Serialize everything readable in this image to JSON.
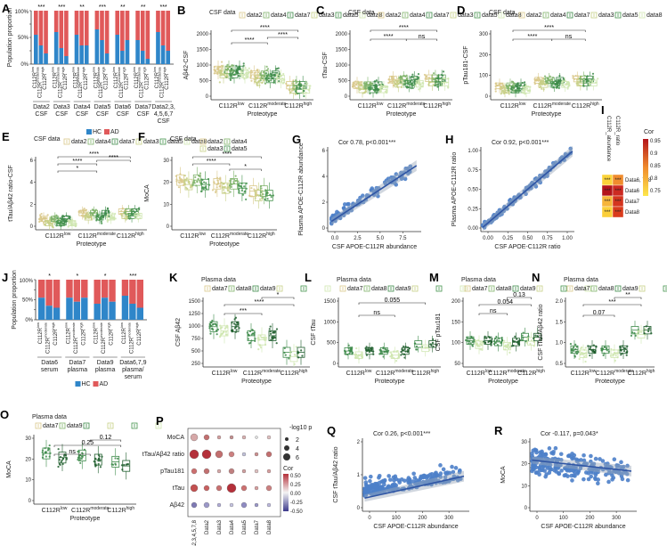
{
  "colors": {
    "hc": "#2f86c9",
    "ad": "#e0595a",
    "data2": "#d9c88a",
    "data3": "#c7cf86",
    "data4": "#7fb36a",
    "data5": "#46944f",
    "data7": "#3d8a4a",
    "data8": "#cfe6b0",
    "data9": "#1f5e2d",
    "scatter": "#4c7fc9",
    "line": "#2f55a4"
  },
  "common": {
    "csf_title": "CSF data",
    "plasma_title": "Plasma data",
    "proteotype": "Proteotype",
    "groups": [
      "C112R<sup>low</sup>",
      "C112R<sup>moderate</sup>",
      "C112R<sup>high</sup>"
    ],
    "legend_csf_all": [
      "data2",
      "data4",
      "data7",
      "data3",
      "data5",
      "data8"
    ],
    "legend_plasma3": [
      "data7",
      "data8",
      "data9"
    ],
    "legend_plasma2": [
      "data7",
      "data9"
    ],
    "hc": "HC",
    "ad": "AD"
  },
  "panels": {
    "A": {
      "label": "A",
      "ylabel": "Population proportion",
      "groups": [
        "Data2 CSF",
        "Data3 CSF",
        "Data4 CSF",
        "Data5 CSF",
        "Data6 CSF",
        "Data7 CSF",
        "Data2,3, 4,5,6,7 CSF"
      ],
      "sig": [
        "***",
        "***",
        "**",
        "***",
        "**",
        "**",
        "***"
      ]
    },
    "B": {
      "label": "B",
      "ylabel": "Aβ42-CSF",
      "yticks": [
        "2000",
        "1500",
        "1000",
        "500",
        "0"
      ],
      "sig": [
        "****",
        "****",
        "****"
      ]
    },
    "C": {
      "label": "C",
      "ylabel": "tTau-CSF",
      "yticks": [
        "2000",
        "1500",
        "1000",
        "500",
        "0"
      ],
      "sig": [
        "****",
        "****",
        "ns"
      ]
    },
    "D": {
      "label": "D",
      "ylabel": "pTau181-CSF",
      "yticks": [
        "300",
        "200",
        "100",
        "0"
      ],
      "sig": [
        "****",
        "****",
        "ns"
      ]
    },
    "E": {
      "label": "E",
      "ylabel": "tTau/Aβ42 ratio-CSF",
      "yticks": [
        "6",
        "4",
        "2",
        "0"
      ],
      "sig": [
        "****",
        "****",
        "****",
        "*"
      ]
    },
    "F": {
      "label": "F",
      "ylabel": "MoCA",
      "yticks": [
        "30",
        "20",
        "10",
        "0"
      ],
      "legend": [
        "data2",
        "data4",
        "data3",
        "data5"
      ],
      "sig": [
        "****",
        "****",
        "*"
      ]
    },
    "G": {
      "label": "G",
      "stat": "Cor 0.78, p<0.001***",
      "xlabel": "CSF APOE-C112R abundance",
      "ylabel": "Plasma APOE-C112R abundance",
      "xticks": [
        "0.0",
        "2.5",
        "5.0",
        "7.5"
      ],
      "yticks": [
        "6",
        "4",
        "2",
        "0"
      ]
    },
    "H": {
      "label": "H",
      "stat": "Cor 0.92, p<0.001***",
      "xlabel": "CSF APOE-C112R ratio",
      "ylabel": "Plasma APOE-C112R ratio",
      "xticks": [
        "0.00",
        "0.25",
        "0.50",
        "0.75",
        "1.00"
      ],
      "yticks": [
        "1.00",
        "0.75",
        "0.50",
        "0.25",
        "0.00"
      ]
    },
    "I": {
      "label": "I",
      "cols": [
        "C112R_abundance",
        "C112R_ratio"
      ],
      "rows": [
        "Data6, 7, 8",
        "Data6",
        "Data7",
        "Data8"
      ],
      "cells": [
        "***",
        "***",
        "***",
        "***",
        "***",
        "***",
        "***",
        "***"
      ],
      "legend_title": "Cor",
      "legend_ticks": [
        "0.95",
        "0.9",
        "0.85",
        "0.8",
        "0.75"
      ]
    },
    "J": {
      "label": "J",
      "ylabel": "Population proportion",
      "groups": [
        "Data6 serum",
        "Data7 plasma",
        "Data9 plasma",
        "Data6,7,9 plasma/ serum"
      ],
      "sig": [
        "*",
        "*",
        "*",
        "***"
      ]
    },
    "K": {
      "label": "K",
      "ylabel": "CSF Aβ42",
      "yticks": [
        "1500",
        "1250",
        "1000",
        "750",
        "500",
        "250"
      ],
      "sig": [
        "*",
        "****",
        "***"
      ]
    },
    "L": {
      "label": "L",
      "ylabel": "CSF tTau",
      "yticks": [
        "1500",
        "1000",
        "500",
        "0"
      ],
      "sig": [
        "0.055",
        "ns"
      ]
    },
    "M": {
      "label": "M",
      "ylabel": "CSF pTau181",
      "yticks": [
        "200",
        "150",
        "100",
        "50"
      ],
      "sig": [
        "0.13",
        "0.054",
        "ns"
      ]
    },
    "N": {
      "label": "N",
      "ylabel": "CSF tTau/Aβ42 ratio",
      "yticks": [
        "2.0",
        "1.5",
        "1.0",
        "0.5"
      ],
      "sig": [
        "**",
        "***",
        "0.07"
      ]
    },
    "O": {
      "label": "O",
      "ylabel": "MoCA",
      "yticks": [
        "30",
        "20",
        "10",
        "0"
      ],
      "sig": [
        "0.12",
        "0.25",
        "ns"
      ]
    },
    "P": {
      "label": "P",
      "rows": [
        "MoCA",
        "tTau/Aβ42 ratio",
        "pTau181",
        "tTau",
        "Aβ42"
      ],
      "cols": [
        "Data2,3,4,5,7,8",
        "Data2",
        "Data3",
        "Data4",
        "Data5",
        "Data7",
        "Data8"
      ],
      "size_title": "-log10 p",
      "size_ticks": [
        "2",
        "4",
        "6"
      ],
      "cor_title": "Cor",
      "cor_ticks": [
        "0.50",
        "0.25",
        "0.00",
        "-0.25",
        "-0.50"
      ]
    },
    "Q": {
      "label": "Q",
      "stat": "Cor 0.26, p<0.001***",
      "xlabel": "CSF APOE-C112R abundance",
      "ylabel": "CSF tTau/Aβ42 ratio",
      "xticks": [
        "0",
        "100",
        "200",
        "300"
      ],
      "yticks": [
        "2",
        "1",
        "0"
      ]
    },
    "R": {
      "label": "R",
      "stat": "Cor -0.117, p=0.043*",
      "xlabel": "CSF APOE-C112R abundance",
      "ylabel": "MoCA",
      "xticks": [
        "0",
        "100",
        "200",
        "300"
      ],
      "yticks": [
        "30",
        "20",
        "10",
        "0"
      ]
    }
  }
}
